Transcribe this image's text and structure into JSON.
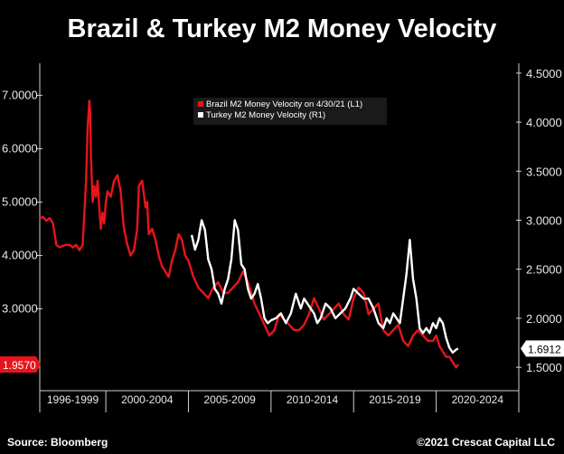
{
  "title": "Brazil & Turkey M2 Money Velocity",
  "footer": {
    "source": "Source: Bloomberg",
    "copyright": "©2021 Crescat Capital LLC"
  },
  "colors": {
    "background": "#000000",
    "brazil": "#e8141c",
    "turkey": "#ffffff"
  },
  "chart_data": {
    "type": "line",
    "title": "Brazil & Turkey M2 Money Velocity",
    "x_categories": [
      "1996-1999",
      "2000-2004",
      "2005-2009",
      "2010-2014",
      "2015-2019",
      "2020-2024"
    ],
    "x_range": [
      1996.0,
      2025.0
    ],
    "left_axis": {
      "ylim": [
        1.5,
        7.6
      ],
      "ticks": [
        "7.0000",
        "6.0000",
        "5.0000",
        "4.0000",
        "3.0000"
      ]
    },
    "right_axis": {
      "ylim": [
        1.28,
        4.6
      ],
      "ticks": [
        "4.5000",
        "4.0000",
        "3.5000",
        "3.0000",
        "2.5000",
        "2.0000",
        "1.5000"
      ]
    },
    "legend": {
      "placement": "top-center",
      "entries": [
        "Brazil M2 Money Velocity on 4/30/21 (L1)",
        "Turkey M2 Money Velocity (R1)"
      ]
    },
    "last_labels": {
      "brazil": "1.9570",
      "turkey": "1.6912"
    },
    "series": [
      {
        "name": "Brazil M2 Money Velocity on 4/30/21 (L1)",
        "axis": "left",
        "color": "#e8141c",
        "x": [
          1996.0,
          1996.2,
          1996.4,
          1996.6,
          1996.8,
          1997.0,
          1997.2,
          1997.4,
          1997.6,
          1997.8,
          1998.0,
          1998.2,
          1998.4,
          1998.6,
          1998.8,
          1998.9,
          1999.0,
          1999.05,
          1999.1,
          1999.2,
          1999.3,
          1999.4,
          1999.5,
          1999.6,
          1999.7,
          1999.8,
          1999.9,
          2000.0,
          2000.1,
          2000.3,
          2000.5,
          2000.7,
          2000.9,
          2001.0,
          2001.1,
          2001.3,
          2001.5,
          2001.7,
          2001.9,
          2002.0,
          2002.2,
          2002.4,
          2002.5,
          2002.6,
          2002.8,
          2003.0,
          2003.2,
          2003.4,
          2003.6,
          2003.8,
          2004.0,
          2004.2,
          2004.4,
          2004.6,
          2004.8,
          2005.0,
          2005.3,
          2005.6,
          2005.9,
          2006.2,
          2006.5,
          2006.8,
          2007.1,
          2007.4,
          2007.7,
          2008.0,
          2008.3,
          2008.6,
          2008.8,
          2009.0,
          2009.3,
          2009.6,
          2009.9,
          2010.2,
          2010.5,
          2010.8,
          2011.1,
          2011.4,
          2011.7,
          2012.0,
          2012.3,
          2012.6,
          2012.9,
          2013.2,
          2013.5,
          2013.8,
          2014.1,
          2014.4,
          2014.7,
          2015.0,
          2015.3,
          2015.6,
          2015.9,
          2016.2,
          2016.5,
          2016.8,
          2017.1,
          2017.4,
          2017.7,
          2018.0,
          2018.3,
          2018.6,
          2018.9,
          2019.2,
          2019.5,
          2019.8,
          2020.0,
          2020.2,
          2020.4,
          2020.6,
          2020.8,
          2021.0,
          2021.2,
          2021.33
        ],
        "y": [
          4.7,
          4.72,
          4.65,
          4.7,
          4.6,
          4.2,
          4.15,
          4.18,
          4.2,
          4.2,
          4.15,
          4.2,
          4.1,
          4.2,
          5.4,
          6.4,
          6.9,
          6.7,
          5.8,
          5.0,
          5.3,
          5.1,
          5.4,
          4.9,
          4.5,
          4.8,
          4.6,
          5.0,
          5.2,
          5.1,
          5.4,
          5.5,
          5.2,
          4.8,
          4.5,
          4.2,
          4.0,
          4.1,
          4.5,
          5.3,
          5.4,
          4.9,
          5.0,
          4.4,
          4.5,
          4.3,
          4.0,
          3.8,
          3.7,
          3.6,
          3.9,
          4.1,
          4.4,
          4.3,
          4.0,
          3.9,
          3.6,
          3.4,
          3.3,
          3.2,
          3.4,
          3.5,
          3.3,
          3.3,
          3.4,
          3.5,
          3.7,
          3.5,
          3.3,
          3.1,
          2.9,
          2.7,
          2.5,
          2.6,
          2.9,
          2.8,
          2.7,
          2.6,
          2.6,
          2.7,
          2.9,
          3.2,
          3.0,
          2.8,
          2.9,
          3.0,
          3.1,
          2.9,
          2.8,
          3.2,
          3.4,
          3.3,
          2.9,
          3.0,
          3.1,
          2.6,
          2.5,
          2.6,
          2.7,
          2.4,
          2.3,
          2.5,
          2.6,
          2.5,
          2.4,
          2.4,
          2.5,
          2.3,
          2.2,
          2.1,
          2.1,
          2.0,
          1.9,
          1.96
        ]
      },
      {
        "name": "Turkey M2 Money Velocity (R1)",
        "axis": "right",
        "color": "#ffffff",
        "x": [
          2005.2,
          2005.4,
          2005.6,
          2005.8,
          2006.0,
          2006.2,
          2006.4,
          2006.6,
          2006.8,
          2007.0,
          2007.2,
          2007.4,
          2007.6,
          2007.8,
          2008.0,
          2008.2,
          2008.4,
          2008.6,
          2008.8,
          2009.0,
          2009.2,
          2009.4,
          2009.6,
          2009.8,
          2010.0,
          2010.3,
          2010.6,
          2010.9,
          2011.2,
          2011.5,
          2011.8,
          2012.0,
          2012.2,
          2012.4,
          2012.6,
          2012.8,
          2013.0,
          2013.3,
          2013.6,
          2013.9,
          2014.2,
          2014.5,
          2014.8,
          2015.0,
          2015.3,
          2015.6,
          2015.9,
          2016.2,
          2016.5,
          2016.8,
          2017.0,
          2017.2,
          2017.4,
          2017.6,
          2017.8,
          2018.0,
          2018.2,
          2018.4,
          2018.6,
          2018.8,
          2019.0,
          2019.2,
          2019.4,
          2019.6,
          2019.8,
          2020.0,
          2020.2,
          2020.4,
          2020.6,
          2020.8,
          2021.0,
          2021.2,
          2021.33
        ],
        "y": [
          2.85,
          2.7,
          2.8,
          3.0,
          2.9,
          2.6,
          2.5,
          2.3,
          2.25,
          2.15,
          2.3,
          2.4,
          2.6,
          3.0,
          2.9,
          2.55,
          2.5,
          2.3,
          2.2,
          2.25,
          2.35,
          2.2,
          2.0,
          1.95,
          1.98,
          2.0,
          2.05,
          1.95,
          2.05,
          2.25,
          2.1,
          2.2,
          2.15,
          2.1,
          2.05,
          1.95,
          2.0,
          2.15,
          2.1,
          2.0,
          2.05,
          2.1,
          2.2,
          2.3,
          2.25,
          2.2,
          2.2,
          2.1,
          1.95,
          1.9,
          2.0,
          1.95,
          2.05,
          2.0,
          1.95,
          2.2,
          2.45,
          2.8,
          2.4,
          2.2,
          1.9,
          1.85,
          1.9,
          1.85,
          1.95,
          1.9,
          2.0,
          1.95,
          1.8,
          1.7,
          1.65,
          1.68,
          1.69
        ]
      }
    ]
  }
}
